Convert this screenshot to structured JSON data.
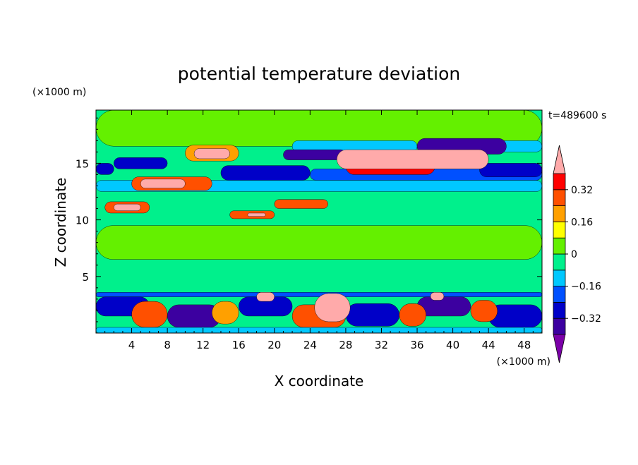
{
  "title": "potential temperature deviation",
  "time_label": "t=489600 s",
  "colors": {
    "cbar": [
      "#7b00a8",
      "#3c00a0",
      "#0000c8",
      "#0050ff",
      "#00c8ff",
      "#00f08c",
      "#64f000",
      "#ffff00",
      "#ffa000",
      "#ff5000",
      "#ff0000",
      "#ffaaaa"
    ]
  },
  "chart_data": {
    "type": "heatmap",
    "title": "potential temperature deviation",
    "xlabel": "X coordinate",
    "ylabel": "Z coordinate",
    "x_unit": "(×1000 m)",
    "y_unit": "(×1000 m)",
    "xlim": [
      0,
      50
    ],
    "ylim": [
      0,
      19.7
    ],
    "x_ticks": [
      4,
      8,
      12,
      16,
      20,
      24,
      28,
      32,
      36,
      40,
      44,
      48
    ],
    "y_ticks": [
      5,
      10,
      15
    ],
    "colorbar": {
      "levels": [
        -0.4,
        -0.32,
        -0.24,
        -0.16,
        -0.08,
        0,
        0.08,
        0.16,
        0.24,
        0.32,
        0.4
      ],
      "tick_values": [
        0.32,
        0.16,
        0,
        -0.16,
        -0.32
      ],
      "tick_labels": [
        "0.32",
        "0.16",
        "0",
        "−0.16",
        "−0.32"
      ],
      "extend": "both"
    },
    "regions": [
      {
        "x": [
          0,
          50
        ],
        "z": [
          0,
          19.7
        ],
        "level": 5
      },
      {
        "x": [
          0,
          50
        ],
        "z": [
          16.5,
          19.7
        ],
        "level": 6
      },
      {
        "x": [
          22,
          36
        ],
        "z": [
          16.0,
          17.0
        ],
        "level": 4
      },
      {
        "x": [
          40,
          50
        ],
        "z": [
          16.0,
          17.0
        ],
        "level": 4
      },
      {
        "x": [
          0,
          50
        ],
        "z": [
          12.5,
          13.5
        ],
        "level": 4
      },
      {
        "x": [
          24,
          50
        ],
        "z": [
          13.5,
          14.5
        ],
        "level": 3
      },
      {
        "x": [
          2,
          8
        ],
        "z": [
          14.5,
          15.5
        ],
        "level": 2
      },
      {
        "x": [
          0,
          2
        ],
        "z": [
          14.0,
          15.0
        ],
        "level": 2
      },
      {
        "x": [
          14,
          24
        ],
        "z": [
          13.5,
          14.8
        ],
        "level": 2
      },
      {
        "x": [
          43,
          50
        ],
        "z": [
          13.8,
          15.0
        ],
        "level": 2
      },
      {
        "x": [
          36,
          46
        ],
        "z": [
          15.8,
          17.2
        ],
        "level": 1
      },
      {
        "x": [
          21,
          28
        ],
        "z": [
          15.3,
          16.2
        ],
        "level": 1
      },
      {
        "x": [
          10,
          16
        ],
        "z": [
          15.2,
          16.6
        ],
        "level": 8
      },
      {
        "x": [
          11,
          15
        ],
        "z": [
          15.4,
          16.3
        ],
        "level": 11
      },
      {
        "x": [
          28,
          38
        ],
        "z": [
          14.0,
          15.5
        ],
        "level": 10
      },
      {
        "x": [
          27,
          44
        ],
        "z": [
          14.5,
          16.2
        ],
        "level": 11
      },
      {
        "x": [
          4,
          13
        ],
        "z": [
          12.6,
          13.8
        ],
        "level": 9
      },
      {
        "x": [
          5,
          10
        ],
        "z": [
          12.8,
          13.6
        ],
        "level": 11
      },
      {
        "x": [
          1,
          6
        ],
        "z": [
          10.6,
          11.6
        ],
        "level": 9
      },
      {
        "x": [
          2,
          5
        ],
        "z": [
          10.8,
          11.4
        ],
        "level": 11
      },
      {
        "x": [
          15,
          20
        ],
        "z": [
          10.1,
          10.8
        ],
        "level": 9
      },
      {
        "x": [
          17,
          19
        ],
        "z": [
          10.3,
          10.6
        ],
        "level": 11
      },
      {
        "x": [
          20,
          26
        ],
        "z": [
          11.0,
          11.8
        ],
        "level": 9
      },
      {
        "x": [
          0,
          50
        ],
        "z": [
          6.5,
          9.5
        ],
        "level": 6
      },
      {
        "x": [
          0,
          50
        ],
        "z": [
          3.2,
          3.6
        ],
        "level": 3
      },
      {
        "x": [
          0,
          6
        ],
        "z": [
          1.5,
          3.2
        ],
        "level": 2
      },
      {
        "x": [
          8,
          14
        ],
        "z": [
          0.5,
          2.5
        ],
        "level": 1
      },
      {
        "x": [
          16,
          22
        ],
        "z": [
          1.5,
          3.2
        ],
        "level": 2
      },
      {
        "x": [
          28,
          34
        ],
        "z": [
          0.6,
          2.6
        ],
        "level": 2
      },
      {
        "x": [
          36,
          42
        ],
        "z": [
          1.5,
          3.2
        ],
        "level": 1
      },
      {
        "x": [
          44,
          50
        ],
        "z": [
          0.5,
          2.5
        ],
        "level": 2
      },
      {
        "x": [
          4,
          8
        ],
        "z": [
          0.5,
          2.8
        ],
        "level": 9
      },
      {
        "x": [
          13,
          16
        ],
        "z": [
          0.8,
          2.8
        ],
        "level": 8
      },
      {
        "x": [
          22,
          28
        ],
        "z": [
          0.5,
          2.5
        ],
        "level": 9
      },
      {
        "x": [
          24.5,
          28.5
        ],
        "z": [
          1.0,
          3.5
        ],
        "level": 11
      },
      {
        "x": [
          34,
          37
        ],
        "z": [
          0.6,
          2.6
        ],
        "level": 9
      },
      {
        "x": [
          42,
          45
        ],
        "z": [
          1.0,
          2.9
        ],
        "level": 9
      },
      {
        "x": [
          18,
          20
        ],
        "z": [
          2.8,
          3.6
        ],
        "level": 11
      },
      {
        "x": [
          37.5,
          39
        ],
        "z": [
          2.9,
          3.6
        ],
        "level": 11
      },
      {
        "x": [
          0,
          50
        ],
        "z": [
          0,
          0.5
        ],
        "level": 4
      }
    ]
  }
}
